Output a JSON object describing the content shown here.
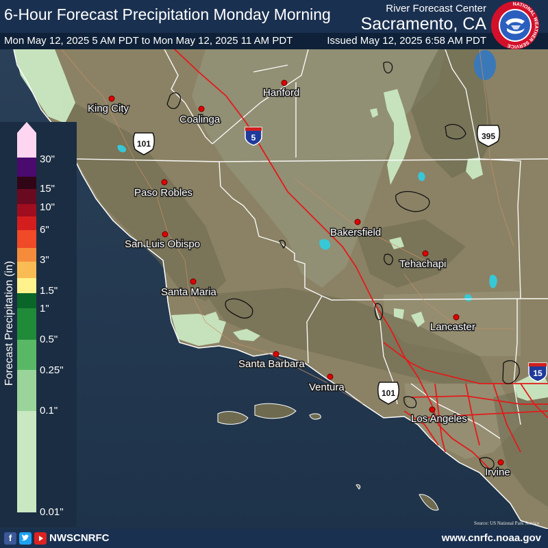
{
  "header": {
    "title": "6-Hour Forecast Precipitation Monday Morning",
    "rfc_label": "River Forecast Center",
    "rfc_location": "Sacramento, CA",
    "valid_period": "Mon May 12, 2025 5 AM PDT to Mon May 12, 2025 11 AM PDT",
    "issued": "Issued May 12, 2025 6:58 AM PDT",
    "logo_ring_text": "NATIONAL WEATHER SERVICE"
  },
  "legend": {
    "title": "Forecast Precipitation (in)",
    "units": "in",
    "ticks": [
      "30\"",
      "15\"",
      "10\"",
      "6\"",
      "3\"",
      "1.5\"",
      "1\"",
      "0.5\"",
      "0.25\"",
      "0.1\"",
      "0.01\""
    ],
    "colors": {
      "above_max": "#ffd6f2",
      "30_plus": "#4a0a6e",
      "15_30": "#300616",
      "10_15": "#6a0a20",
      "6_10": "#a00d1e",
      "4_6": "#d41e1e",
      "3_4": "#f04a28",
      "2_3": "#f58c3c",
      "1.5_2": "#f9bc55",
      "1_1.5": "#fff28c",
      "0.75_1": "#0a6628",
      "0.5_0.75": "#1f8a38",
      "0.25_0.5": "#59b865",
      "0.1_0.25": "#9ad49a",
      "0.01_0.1": "#c9e8c2"
    }
  },
  "map": {
    "cities": [
      {
        "name": "King City"
      },
      {
        "name": "Coalinga"
      },
      {
        "name": "Hanford"
      },
      {
        "name": "Paso Robles"
      },
      {
        "name": "San Luis Obispo"
      },
      {
        "name": "Bakersfield"
      },
      {
        "name": "Tehachapi"
      },
      {
        "name": "Santa Maria"
      },
      {
        "name": "Lancaster"
      },
      {
        "name": "Santa Barbara"
      },
      {
        "name": "Ventura"
      },
      {
        "name": "Los Angeles"
      },
      {
        "name": "Irvine"
      }
    ],
    "highways": [
      {
        "label": "101",
        "type": "us-route"
      },
      {
        "label": "5",
        "type": "interstate"
      },
      {
        "label": "395",
        "type": "us-route"
      },
      {
        "label": "101",
        "type": "us-route"
      },
      {
        "label": "15",
        "type": "interstate"
      }
    ],
    "source_credit": "Source: US National Park Service",
    "colors": {
      "ocean": "#22384f",
      "land": "#8c8366",
      "valley": "#8f8d72",
      "mountains": "#6c6a4f",
      "state_county_lines": "#ffffff",
      "highway": "#e31a1a",
      "city_dot": "#e00000",
      "light_precip": "#c9e8c2",
      "water": "#37c8d8"
    }
  },
  "footer": {
    "social_handle": "NWSCNRFC",
    "website": "www.cnrfc.noaa.gov",
    "icons": [
      "facebook-icon",
      "twitter-icon",
      "youtube-icon"
    ]
  }
}
